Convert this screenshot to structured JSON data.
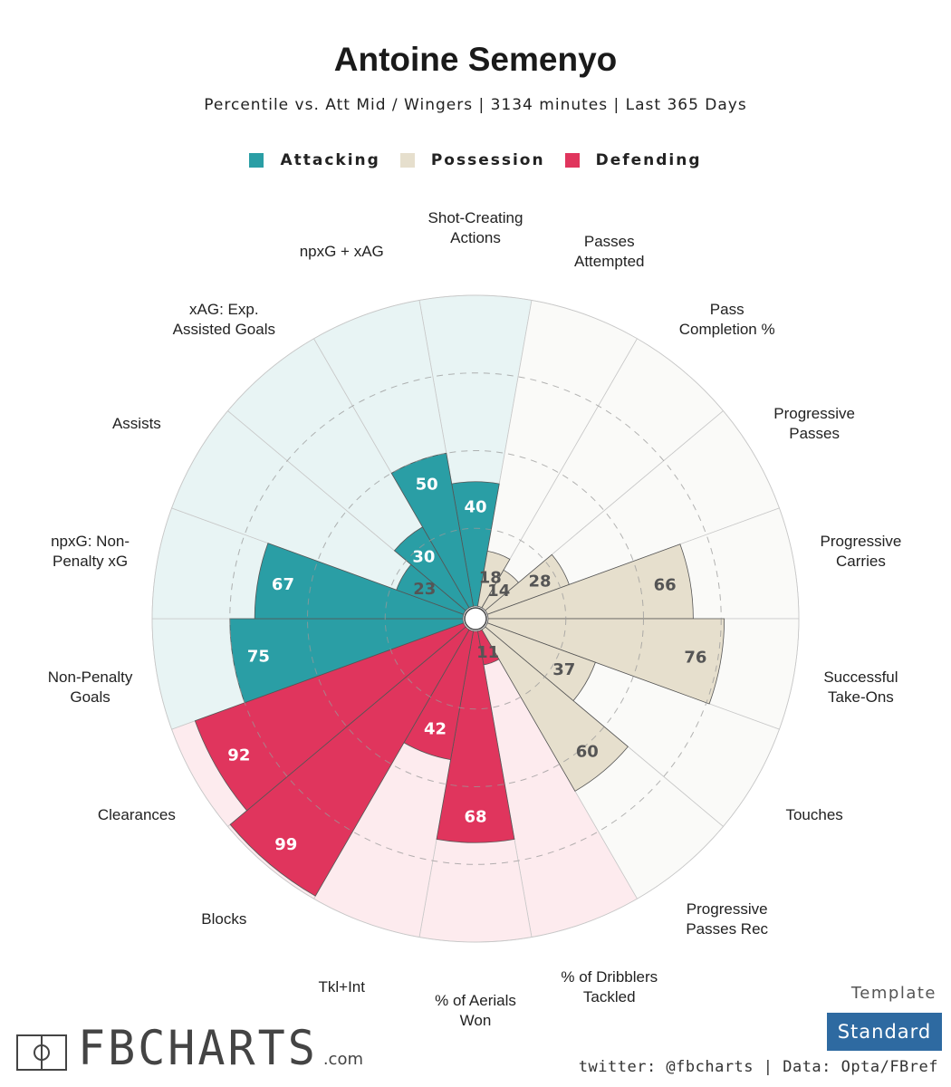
{
  "header": {
    "title": "Antoine Semenyo",
    "subtitle": "Percentile vs. Att Mid / Wingers | 3134 minutes | Last 365 Days"
  },
  "legend": [
    {
      "label": "Attacking",
      "color": "#2a9ea5"
    },
    {
      "label": "Possession",
      "color": "#e6dfcd"
    },
    {
      "label": "Defending",
      "color": "#e0355d"
    }
  ],
  "colors": {
    "attacking_bar": "#2a9ea5",
    "attacking_bg": "#e8f4f4",
    "possession_bar": "#e6dfcd",
    "possession_bg": "#fafaf8",
    "defending_bar": "#e0355d",
    "defending_bg": "#fdebee"
  },
  "chart_data": {
    "type": "radar-bar",
    "value_range": [
      0,
      100
    ],
    "grid": true,
    "metrics": [
      {
        "label": "Shot-Creating\nActions",
        "value": 40,
        "group": "Attacking"
      },
      {
        "label": "Passes\nAttempted",
        "value": 18,
        "group": "Possession"
      },
      {
        "label": "Pass\nCompletion %",
        "value": 14,
        "group": "Possession"
      },
      {
        "label": "Progressive\nPasses",
        "value": 28,
        "group": "Possession"
      },
      {
        "label": "Progressive\nCarries",
        "value": 66,
        "group": "Possession"
      },
      {
        "label": "Successful\nTake-Ons",
        "value": 76,
        "group": "Possession"
      },
      {
        "label": "Touches",
        "value": 37,
        "group": "Possession"
      },
      {
        "label": "Progressive\nPasses Rec",
        "value": 60,
        "group": "Possession"
      },
      {
        "label": "% of Dribblers\nTackled",
        "value": 11,
        "group": "Defending"
      },
      {
        "label": "% of Aerials\nWon",
        "value": 68,
        "group": "Defending"
      },
      {
        "label": "Tkl+Int",
        "value": 42,
        "group": "Defending"
      },
      {
        "label": "Blocks",
        "value": 99,
        "group": "Defending"
      },
      {
        "label": "Clearances",
        "value": 92,
        "group": "Defending"
      },
      {
        "label": "Non-Penalty\nGoals",
        "value": 75,
        "group": "Attacking"
      },
      {
        "label": "npxG: Non-\nPenalty xG",
        "value": 67,
        "group": "Attacking"
      },
      {
        "label": "Assists",
        "value": 23,
        "group": "Attacking"
      },
      {
        "label": "xAG: Exp.\nAssisted Goals",
        "value": 30,
        "group": "Attacking"
      },
      {
        "label": "npxG + xAG",
        "value": 50,
        "group": "Attacking"
      }
    ]
  },
  "footer": {
    "template_label": "Template",
    "template_value": "Standard",
    "credits": "twitter: @fbcharts | Data: Opta/FBref",
    "logo_text": "FBCHARTS",
    "logo_suffix": ".com"
  }
}
